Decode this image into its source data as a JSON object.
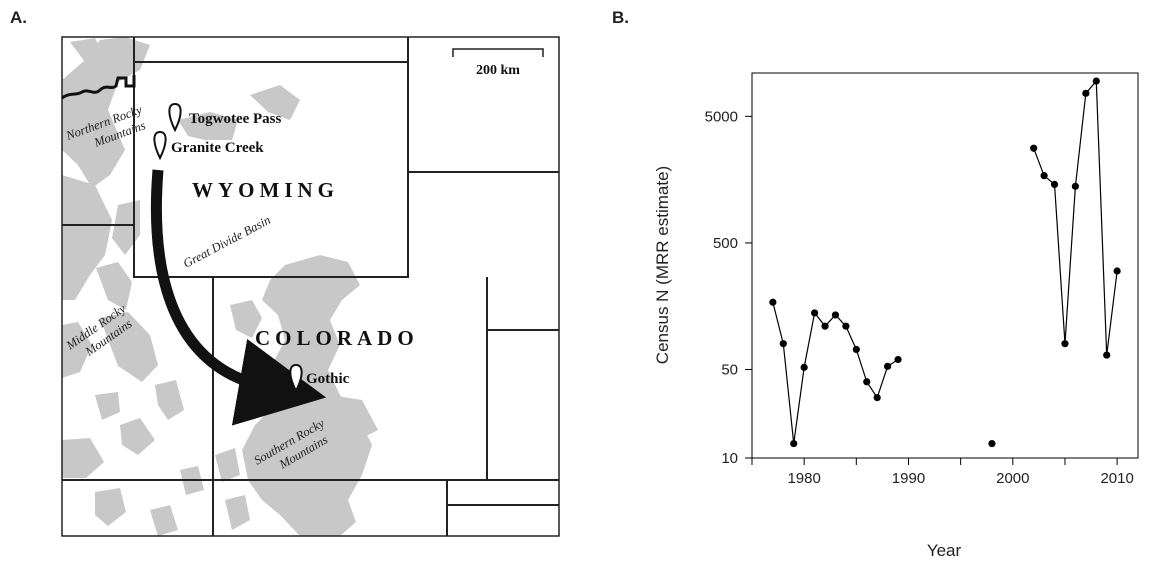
{
  "panel_a": {
    "label": "A.",
    "scale_bar": "200 km",
    "states": [
      "WYOMING",
      "COLORADO"
    ],
    "sites": [
      "Togwotee Pass",
      "Granite Creek",
      "Gothic"
    ],
    "regions": {
      "northern": [
        "Northern Rocky",
        "Mountains"
      ],
      "middle": [
        "Middle Rocky",
        "Mountains"
      ],
      "southern": [
        "Southern Rocky",
        "Mountains"
      ],
      "basin": "Great Divide Basin"
    },
    "colors": {
      "mountains": "#c8c8c8",
      "border": "#222222",
      "arrow": "#111111"
    }
  },
  "panel_b": {
    "label": "B."
  },
  "chart_data": {
    "type": "line",
    "title": "",
    "xlabel": "Year",
    "ylabel": "Census N (MRR estimate)",
    "xlim": [
      1975,
      2012
    ],
    "ylim": [
      10,
      11000
    ],
    "yscale": "log",
    "xticks": [
      1980,
      1990,
      2000,
      2010
    ],
    "yticks": [
      10,
      50,
      500,
      5000
    ],
    "grid": false,
    "segments": [
      {
        "x": [
          1977,
          1978,
          1979,
          1980,
          1981,
          1982,
          1983,
          1984,
          1985,
          1986,
          1987,
          1988,
          1989
        ],
        "y": [
          170,
          80,
          13,
          52,
          140,
          110,
          135,
          110,
          72,
          40,
          30,
          53,
          60
        ]
      },
      {
        "x": [
          1998
        ],
        "y": [
          13
        ]
      },
      {
        "x": [
          2002,
          2003,
          2004,
          2005,
          2006,
          2007,
          2008,
          2009,
          2010
        ],
        "y": [
          2800,
          1700,
          1450,
          80,
          1400,
          7600,
          9500,
          65,
          300
        ]
      }
    ],
    "color": "#000000"
  }
}
